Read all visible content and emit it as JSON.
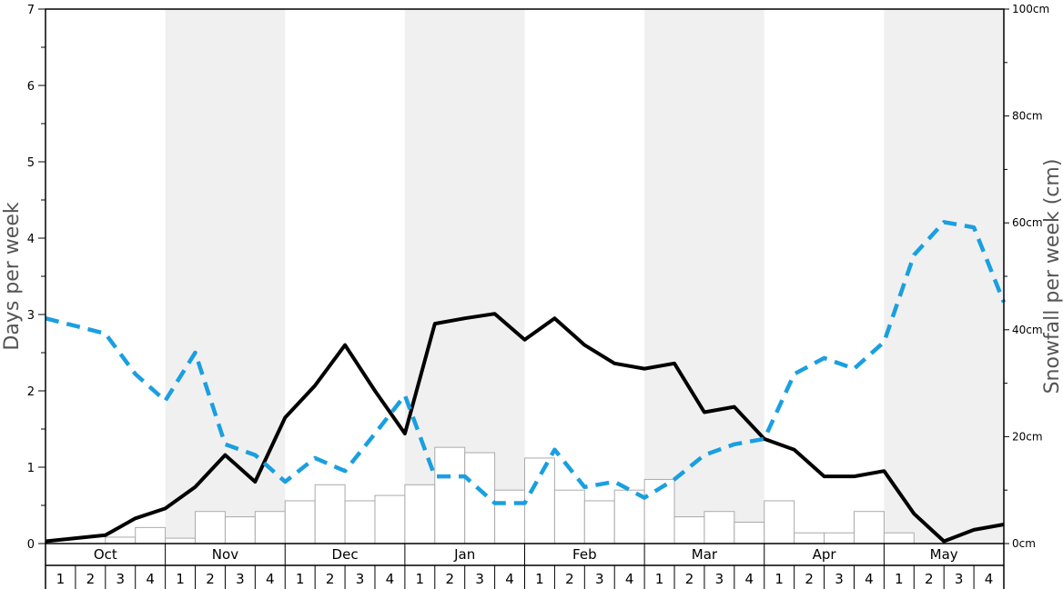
{
  "chart_data": {
    "type": "bar+line",
    "ylabel_left": "Days per week",
    "ylabel_right": "Snowfall per week (cm)",
    "ylim_left": [
      0,
      7
    ],
    "ylim_right": [
      0,
      100
    ],
    "left_ticks": [
      0,
      1,
      2,
      3,
      4,
      5,
      6,
      7
    ],
    "right_ticks": [
      {
        "value": 0,
        "label": "0cm"
      },
      {
        "value": 20,
        "label": "20cm"
      },
      {
        "value": 40,
        "label": "40cm"
      },
      {
        "value": 60,
        "label": "60cm"
      },
      {
        "value": 80,
        "label": "80cm"
      },
      {
        "value": 100,
        "label": "100cm"
      }
    ],
    "months": [
      "Oct",
      "Nov",
      "Dec",
      "Jan",
      "Feb",
      "Mar",
      "Apr",
      "May"
    ],
    "weeks": [
      "1",
      "2",
      "3",
      "4"
    ],
    "shaded_months": [
      "Nov",
      "Jan",
      "Mar",
      "May"
    ],
    "colors": {
      "solid_line": "#000000",
      "dashed_line": "#1a9fe0",
      "bar_fill": "#ffffff",
      "bar_stroke": "#aaaaaa",
      "shade": "#f0f0f0"
    },
    "snowfall_cm": [
      0.0,
      0.0,
      1.2,
      3.0,
      1.0,
      6.0,
      5.0,
      6.0,
      8.0,
      11.0,
      8.0,
      9.0,
      11.0,
      18.0,
      17.0,
      10.0,
      16.0,
      10.0,
      8.0,
      10.0,
      12.0,
      5.0,
      6.0,
      4.0,
      8.0,
      2.0,
      2.0,
      6.0,
      2.0,
      0.0,
      0.0,
      0.0
    ],
    "series": [
      {
        "style": "solid",
        "values": [
          0.03,
          0.07,
          0.11,
          0.33,
          0.46,
          0.74,
          1.16,
          0.81,
          1.65,
          2.07,
          2.6,
          2.0,
          1.44,
          2.88,
          2.95,
          3.01,
          2.67,
          2.95,
          2.6,
          2.36,
          2.29,
          2.36,
          1.72,
          1.79,
          1.37,
          1.23,
          0.88,
          0.88,
          0.95,
          0.39,
          0.03,
          0.18,
          0.25
        ]
      },
      {
        "style": "dashed",
        "values": [
          2.95,
          2.85,
          2.75,
          2.22,
          1.87,
          2.5,
          1.3,
          1.16,
          0.81,
          1.12,
          0.95,
          1.44,
          1.94,
          0.88,
          0.88,
          0.53,
          0.53,
          1.23,
          0.74,
          0.81,
          0.6,
          0.84,
          1.16,
          1.3,
          1.37,
          2.22,
          2.43,
          2.29,
          2.64,
          3.78,
          4.21,
          4.14,
          3.16
        ]
      }
    ]
  }
}
